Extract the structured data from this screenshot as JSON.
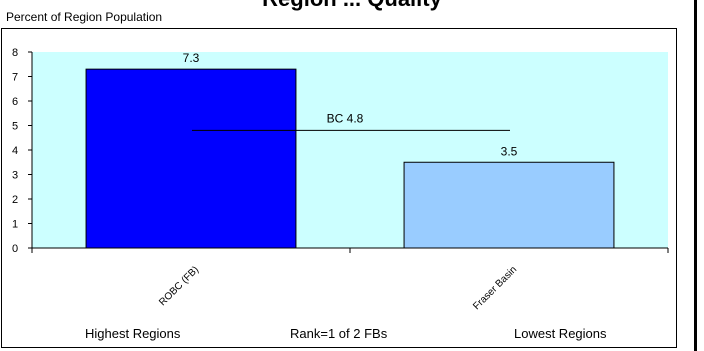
{
  "chart_data": {
    "type": "bar",
    "title": "Region ... Quality",
    "ylabel": "Percent of Region Population",
    "categories": [
      "ROBC (FB)",
      "Fraser Basin"
    ],
    "values": [
      7.3,
      3.5
    ],
    "value_labels": [
      "7.3",
      "3.5"
    ],
    "ylim": [
      0,
      8
    ],
    "yticks": [
      0,
      1,
      2,
      3,
      4,
      5,
      6,
      7,
      8
    ],
    "reference_line": {
      "label": "BC 4.8",
      "value": 4.8
    },
    "colors": {
      "plot_bg": "#ccffff",
      "bar1": "#0000ff",
      "bar2": "#99ccff"
    },
    "grid": false,
    "footer": {
      "left": "Highest Regions",
      "center": "Rank=1 of 2 FBs",
      "right": "Lowest Regions"
    }
  }
}
